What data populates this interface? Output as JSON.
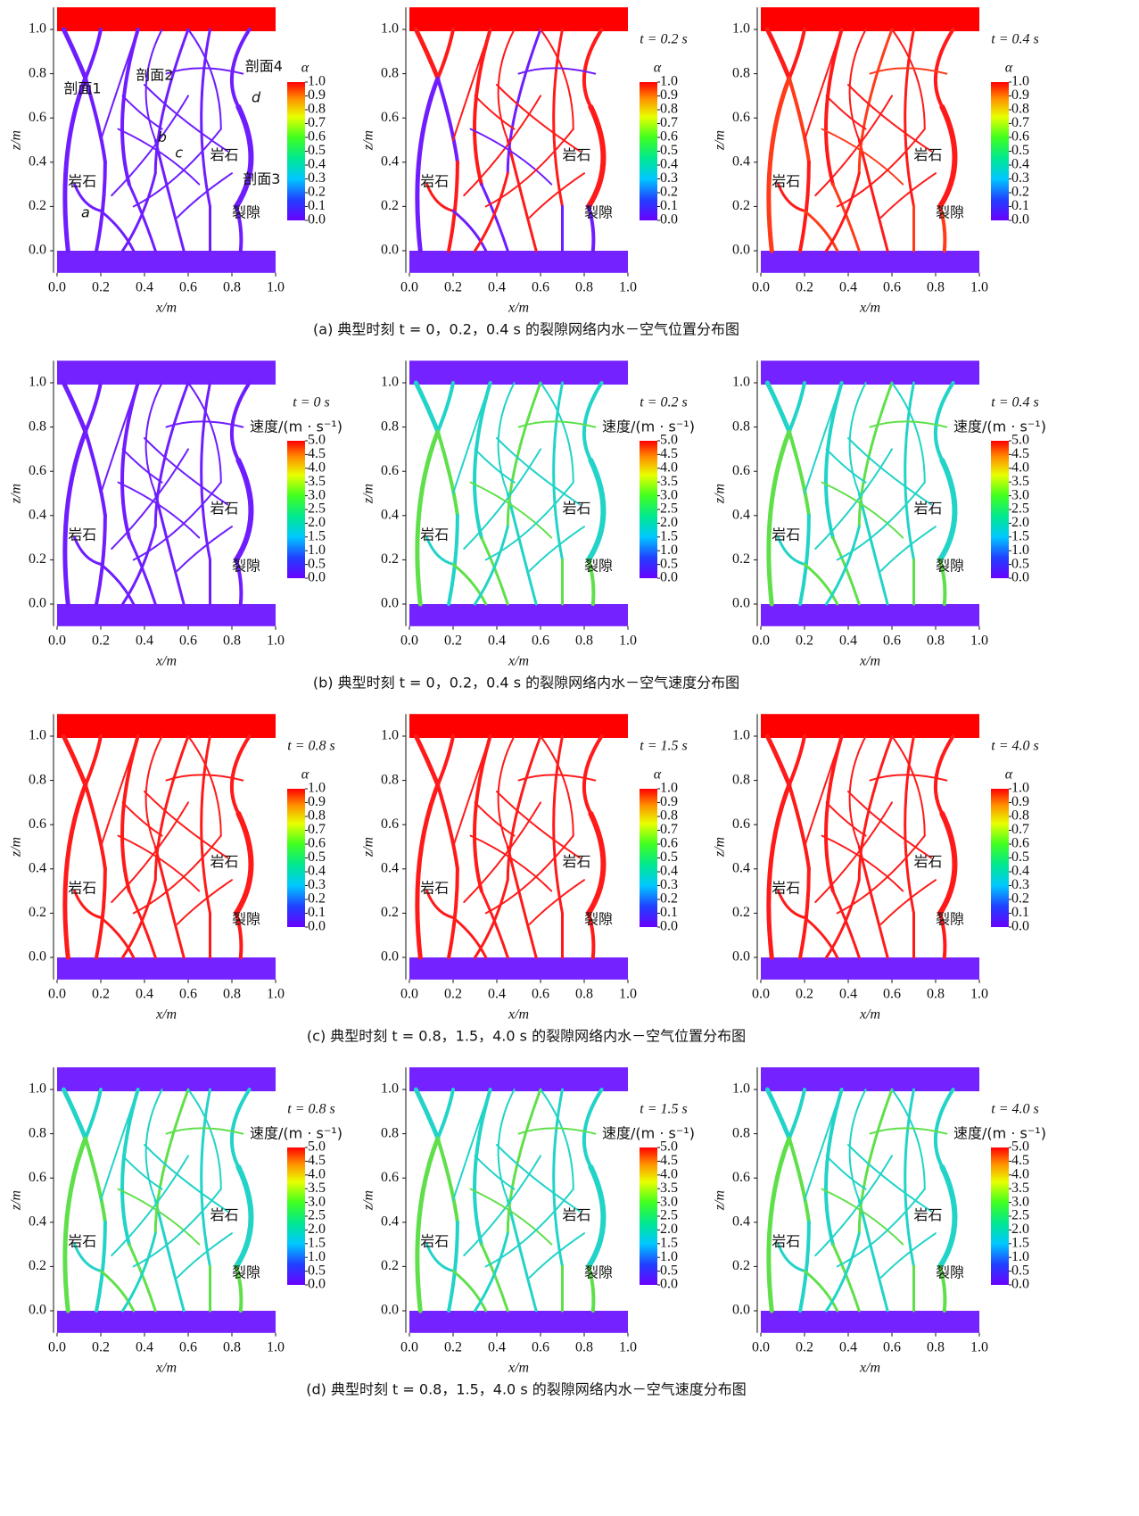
{
  "chart_data": [
    {
      "type": "field",
      "xlabel": "x/m",
      "ylabel": "z/m",
      "xlim": [
        0,
        1
      ],
      "ylim": [
        -0.1,
        1.1
      ],
      "xticks": [
        {
          "value": 0,
          "label": "0.0"
        },
        0.2,
        0.4,
        0.6,
        0.8,
        {
          "value": 1,
          "label": "1.0"
        }
      ],
      "yticks": [
        {
          "value": 0,
          "label": "0.0"
        },
        0.2,
        0.4,
        0.6,
        0.8,
        {
          "value": 1,
          "label": "1.0"
        }
      ],
      "colorbar": {
        "label": "α",
        "clim": [
          0,
          1
        ],
        "ticks": [
          {
            "value": 1,
            "label": "1.0"
          },
          0.9,
          0.8,
          0.7,
          0.6,
          0.5,
          0.4,
          0.3,
          0.2,
          0.1,
          {
            "value": 0,
            "label": "0.0"
          }
        ]
      },
      "top_bar_color": "#ff0000",
      "bottom_bar_color": "#7422ff",
      "fluid_colors": [
        "#6f1dff",
        "#6f1dff"
      ],
      "annotations": [
        "岩石",
        "岩石",
        "裂隙",
        "剖面1",
        "剖面2",
        "剖面3",
        "剖面4",
        "a",
        "b",
        "c",
        "d"
      ]
    },
    {
      "type": "field",
      "time_label": "t = 0.2 s",
      "xlabel": "x/m",
      "ylabel": "z/m",
      "xlim": [
        0,
        1
      ],
      "ylim": [
        -0.1,
        1.1
      ],
      "xticks": [
        {
          "value": 0,
          "label": "0.0"
        },
        0.2,
        0.4,
        0.6,
        0.8,
        {
          "value": 1,
          "label": "1.0"
        }
      ],
      "yticks": [
        {
          "value": 0,
          "label": "0.0"
        },
        0.2,
        0.4,
        0.6,
        0.8,
        {
          "value": 1,
          "label": "1.0"
        }
      ],
      "colorbar": {
        "label": "α",
        "clim": [
          0,
          1
        ],
        "ticks": [
          {
            "value": 1,
            "label": "1.0"
          },
          0.9,
          0.8,
          0.7,
          0.6,
          0.5,
          0.4,
          0.3,
          0.2,
          0.1,
          {
            "value": 0,
            "label": "0.0"
          }
        ]
      },
      "top_bar_color": "#ff0000",
      "bottom_bar_color": "#7422ff",
      "fluid_colors": [
        "#ff1a1a",
        "#6f1dff"
      ],
      "annotations": [
        "岩石",
        "岩石",
        "裂隙"
      ]
    },
    {
      "type": "field",
      "time_label": "t = 0.4 s",
      "xlabel": "x/m",
      "ylabel": "z/m",
      "xlim": [
        0,
        1
      ],
      "ylim": [
        -0.1,
        1.1
      ],
      "xticks": [
        {
          "value": 0,
          "label": "0.0"
        },
        0.2,
        0.4,
        0.6,
        0.8,
        {
          "value": 1,
          "label": "1.0"
        }
      ],
      "yticks": [
        {
          "value": 0,
          "label": "0.0"
        },
        0.2,
        0.4,
        0.6,
        0.8,
        {
          "value": 1,
          "label": "1.0"
        }
      ],
      "colorbar": {
        "label": "α",
        "clim": [
          0,
          1
        ],
        "ticks": [
          {
            "value": 1,
            "label": "1.0"
          },
          0.9,
          0.8,
          0.7,
          0.6,
          0.5,
          0.4,
          0.3,
          0.2,
          0.1,
          {
            "value": 0,
            "label": "0.0"
          }
        ]
      },
      "top_bar_color": "#ff0000",
      "bottom_bar_color": "#7422ff",
      "fluid_colors": [
        "#ff1a1a",
        "#ff3b1a"
      ],
      "annotations": [
        "岩石",
        "岩石",
        "裂隙"
      ]
    },
    {
      "type": "field",
      "time_label": "t = 0 s",
      "xlabel": "x/m",
      "ylabel": "z/m",
      "xlim": [
        0,
        1
      ],
      "ylim": [
        -0.1,
        1.1
      ],
      "xticks": [
        {
          "value": 0,
          "label": "0.0"
        },
        0.2,
        0.4,
        0.6,
        0.8,
        {
          "value": 1,
          "label": "1.0"
        }
      ],
      "yticks": [
        {
          "value": 0,
          "label": "0.0"
        },
        0.2,
        0.4,
        0.6,
        0.8,
        {
          "value": 1,
          "label": "1.0"
        }
      ],
      "colorbar": {
        "label": "速度/(m · s⁻¹)",
        "clim": [
          0,
          5
        ],
        "ticks": [
          {
            "value": 5,
            "label": "5.0"
          },
          4.5,
          {
            "value": 4,
            "label": "4.0"
          },
          3.5,
          {
            "value": 3,
            "label": "3.0"
          },
          2.5,
          {
            "value": 2,
            "label": "2.0"
          },
          1.5,
          {
            "value": 1,
            "label": "1.0"
          },
          0.5,
          {
            "value": 0,
            "label": "0.0"
          }
        ]
      },
      "top_bar_color": "#7422ff",
      "bottom_bar_color": "#7422ff",
      "fluid_colors": [
        "#6f1dff",
        "#6f1dff"
      ],
      "annotations": [
        "岩石",
        "岩石",
        "裂隙"
      ]
    },
    {
      "type": "field",
      "time_label": "t = 0.2 s",
      "xlabel": "x/m",
      "ylabel": "z/m",
      "xlim": [
        0,
        1
      ],
      "ylim": [
        -0.1,
        1.1
      ],
      "xticks": [
        {
          "value": 0,
          "label": "0.0"
        },
        0.2,
        0.4,
        0.6,
        0.8,
        {
          "value": 1,
          "label": "1.0"
        }
      ],
      "yticks": [
        {
          "value": 0,
          "label": "0.0"
        },
        0.2,
        0.4,
        0.6,
        0.8,
        {
          "value": 1,
          "label": "1.0"
        }
      ],
      "colorbar": {
        "label": "速度/(m · s⁻¹)",
        "clim": [
          0,
          5
        ],
        "ticks": [
          {
            "value": 5,
            "label": "5.0"
          },
          4.5,
          {
            "value": 4,
            "label": "4.0"
          },
          3.5,
          {
            "value": 3,
            "label": "3.0"
          },
          2.5,
          {
            "value": 2,
            "label": "2.0"
          },
          1.5,
          {
            "value": 1,
            "label": "1.0"
          },
          0.5,
          {
            "value": 0,
            "label": "0.0"
          }
        ]
      },
      "top_bar_color": "#7422ff",
      "bottom_bar_color": "#7422ff",
      "fluid_colors": [
        "#22d3c8",
        "#5fe04a"
      ],
      "annotations": [
        "岩石",
        "岩石",
        "裂隙"
      ]
    },
    {
      "type": "field",
      "time_label": "t = 0.4 s",
      "xlabel": "x/m",
      "ylabel": "z/m",
      "xlim": [
        0,
        1
      ],
      "ylim": [
        -0.1,
        1.1
      ],
      "xticks": [
        {
          "value": 0,
          "label": "0.0"
        },
        0.2,
        0.4,
        0.6,
        0.8,
        {
          "value": 1,
          "label": "1.0"
        }
      ],
      "yticks": [
        {
          "value": 0,
          "label": "0.0"
        },
        0.2,
        0.4,
        0.6,
        0.8,
        {
          "value": 1,
          "label": "1.0"
        }
      ],
      "colorbar": {
        "label": "速度/(m · s⁻¹)",
        "clim": [
          0,
          5
        ],
        "ticks": [
          {
            "value": 5,
            "label": "5.0"
          },
          4.5,
          {
            "value": 4,
            "label": "4.0"
          },
          3.5,
          {
            "value": 3,
            "label": "3.0"
          },
          2.5,
          {
            "value": 2,
            "label": "2.0"
          },
          1.5,
          {
            "value": 1,
            "label": "1.0"
          },
          0.5,
          {
            "value": 0,
            "label": "0.0"
          }
        ]
      },
      "top_bar_color": "#7422ff",
      "bottom_bar_color": "#7422ff",
      "fluid_colors": [
        "#22d3c8",
        "#5fe04a"
      ],
      "annotations": [
        "岩石",
        "岩石",
        "裂隙"
      ]
    },
    {
      "type": "field",
      "time_label": "t = 0.8 s",
      "xlabel": "x/m",
      "ylabel": "z/m",
      "xlim": [
        0,
        1
      ],
      "ylim": [
        -0.1,
        1.1
      ],
      "xticks": [
        {
          "value": 0,
          "label": "0.0"
        },
        0.2,
        0.4,
        0.6,
        0.8,
        {
          "value": 1,
          "label": "1.0"
        }
      ],
      "yticks": [
        {
          "value": 0,
          "label": "0.0"
        },
        0.2,
        0.4,
        0.6,
        0.8,
        {
          "value": 1,
          "label": "1.0"
        }
      ],
      "colorbar": {
        "label": "α",
        "clim": [
          0,
          1
        ],
        "ticks": [
          {
            "value": 1,
            "label": "1.0"
          },
          0.9,
          0.8,
          0.7,
          0.6,
          0.5,
          0.4,
          0.3,
          0.2,
          0.1,
          {
            "value": 0,
            "label": "0.0"
          }
        ]
      },
      "top_bar_color": "#ff0000",
      "bottom_bar_color": "#7422ff",
      "fluid_colors": [
        "#ff1a1a",
        "#ff1a1a"
      ],
      "annotations": [
        "岩石",
        "岩石",
        "裂隙"
      ]
    },
    {
      "type": "field",
      "time_label": "t = 1.5 s",
      "xlabel": "x/m",
      "ylabel": "z/m",
      "xlim": [
        0,
        1
      ],
      "ylim": [
        -0.1,
        1.1
      ],
      "xticks": [
        {
          "value": 0,
          "label": "0.0"
        },
        0.2,
        0.4,
        0.6,
        0.8,
        {
          "value": 1,
          "label": "1.0"
        }
      ],
      "yticks": [
        {
          "value": 0,
          "label": "0.0"
        },
        0.2,
        0.4,
        0.6,
        0.8,
        {
          "value": 1,
          "label": "1.0"
        }
      ],
      "colorbar": {
        "label": "α",
        "clim": [
          0,
          1
        ],
        "ticks": [
          {
            "value": 1,
            "label": "1.0"
          },
          0.9,
          0.8,
          0.7,
          0.6,
          0.5,
          0.4,
          0.3,
          0.2,
          0.1,
          {
            "value": 0,
            "label": "0.0"
          }
        ]
      },
      "top_bar_color": "#ff0000",
      "bottom_bar_color": "#7422ff",
      "fluid_colors": [
        "#ff1a1a",
        "#ff1a1a"
      ],
      "annotations": [
        "岩石",
        "岩石",
        "裂隙"
      ]
    },
    {
      "type": "field",
      "time_label": "t = 4.0 s",
      "xlabel": "x/m",
      "ylabel": "z/m",
      "xlim": [
        0,
        1
      ],
      "ylim": [
        -0.1,
        1.1
      ],
      "xticks": [
        {
          "value": 0,
          "label": "0.0"
        },
        0.2,
        0.4,
        0.6,
        0.8,
        {
          "value": 1,
          "label": "1.0"
        }
      ],
      "yticks": [
        {
          "value": 0,
          "label": "0.0"
        },
        0.2,
        0.4,
        0.6,
        0.8,
        {
          "value": 1,
          "label": "1.0"
        }
      ],
      "colorbar": {
        "label": "α",
        "clim": [
          0,
          1
        ],
        "ticks": [
          {
            "value": 1,
            "label": "1.0"
          },
          0.9,
          0.8,
          0.7,
          0.6,
          0.5,
          0.4,
          0.3,
          0.2,
          0.1,
          {
            "value": 0,
            "label": "0.0"
          }
        ]
      },
      "top_bar_color": "#ff0000",
      "bottom_bar_color": "#7422ff",
      "fluid_colors": [
        "#ff1a1a",
        "#ff1a1a"
      ],
      "annotations": [
        "岩石",
        "岩石",
        "裂隙"
      ]
    },
    {
      "type": "field",
      "time_label": "t = 0.8 s",
      "xlabel": "x/m",
      "ylabel": "z/m",
      "xlim": [
        0,
        1
      ],
      "ylim": [
        -0.1,
        1.1
      ],
      "xticks": [
        {
          "value": 0,
          "label": "0.0"
        },
        0.2,
        0.4,
        0.6,
        0.8,
        {
          "value": 1,
          "label": "1.0"
        }
      ],
      "yticks": [
        {
          "value": 0,
          "label": "0.0"
        },
        0.2,
        0.4,
        0.6,
        0.8,
        {
          "value": 1,
          "label": "1.0"
        }
      ],
      "colorbar": {
        "label": "速度/(m · s⁻¹)",
        "clim": [
          0,
          5
        ],
        "ticks": [
          {
            "value": 5,
            "label": "5.0"
          },
          4.5,
          {
            "value": 4,
            "label": "4.0"
          },
          3.5,
          {
            "value": 3,
            "label": "3.0"
          },
          2.5,
          {
            "value": 2,
            "label": "2.0"
          },
          1.5,
          {
            "value": 1,
            "label": "1.0"
          },
          0.5,
          {
            "value": 0,
            "label": "0.0"
          }
        ]
      },
      "top_bar_color": "#7422ff",
      "bottom_bar_color": "#7422ff",
      "fluid_colors": [
        "#22d3c8",
        "#5fe04a"
      ],
      "annotations": [
        "岩石",
        "岩石",
        "裂隙"
      ]
    },
    {
      "type": "field",
      "time_label": "t = 1.5 s",
      "xlabel": "x/m",
      "ylabel": "z/m",
      "xlim": [
        0,
        1
      ],
      "ylim": [
        -0.1,
        1.1
      ],
      "xticks": [
        {
          "value": 0,
          "label": "0.0"
        },
        0.2,
        0.4,
        0.6,
        0.8,
        {
          "value": 1,
          "label": "1.0"
        }
      ],
      "yticks": [
        {
          "value": 0,
          "label": "0.0"
        },
        0.2,
        0.4,
        0.6,
        0.8,
        {
          "value": 1,
          "label": "1.0"
        }
      ],
      "colorbar": {
        "label": "速度/(m · s⁻¹)",
        "clim": [
          0,
          5
        ],
        "ticks": [
          {
            "value": 5,
            "label": "5.0"
          },
          4.5,
          {
            "value": 4,
            "label": "4.0"
          },
          3.5,
          {
            "value": 3,
            "label": "3.0"
          },
          2.5,
          {
            "value": 2,
            "label": "2.0"
          },
          1.5,
          {
            "value": 1,
            "label": "1.0"
          },
          0.5,
          {
            "value": 0,
            "label": "0.0"
          }
        ]
      },
      "top_bar_color": "#7422ff",
      "bottom_bar_color": "#7422ff",
      "fluid_colors": [
        "#22d3c8",
        "#5fe04a"
      ],
      "annotations": [
        "岩石",
        "岩石",
        "裂隙"
      ]
    },
    {
      "type": "field",
      "time_label": "t = 4.0 s",
      "xlabel": "x/m",
      "ylabel": "z/m",
      "xlim": [
        0,
        1
      ],
      "ylim": [
        -0.1,
        1.1
      ],
      "xticks": [
        {
          "value": 0,
          "label": "0.0"
        },
        0.2,
        0.4,
        0.6,
        0.8,
        {
          "value": 1,
          "label": "1.0"
        }
      ],
      "yticks": [
        {
          "value": 0,
          "label": "0.0"
        },
        0.2,
        0.4,
        0.6,
        0.8,
        {
          "value": 1,
          "label": "1.0"
        }
      ],
      "colorbar": {
        "label": "速度/(m · s⁻¹)",
        "clim": [
          0,
          5
        ],
        "ticks": [
          {
            "value": 5,
            "label": "5.0"
          },
          4.5,
          {
            "value": 4,
            "label": "4.0"
          },
          3.5,
          {
            "value": 3,
            "label": "3.0"
          },
          2.5,
          {
            "value": 2,
            "label": "2.0"
          },
          1.5,
          {
            "value": 1,
            "label": "1.0"
          },
          0.5,
          {
            "value": 0,
            "label": "0.0"
          }
        ]
      },
      "top_bar_color": "#7422ff",
      "bottom_bar_color": "#7422ff",
      "fluid_colors": [
        "#22d3c8",
        "#5fe04a"
      ],
      "annotations": [
        "岩石",
        "岩石",
        "裂隙"
      ]
    }
  ],
  "captions": [
    "(a)  典型时刻 t = 0，0.2，0.4 s 的裂隙网络内水－空气位置分布图",
    "(b)  典型时刻 t = 0，0.2，0.4 s 的裂隙网络内水－空气速度分布图",
    "(c)  典型时刻 t = 0.8，1.5，4.0 s 的裂隙网络内水－空气位置分布图",
    "(d)  典型时刻 t = 0.8，1.5，4.0 s 的裂隙网络内水－空气速度分布图"
  ]
}
